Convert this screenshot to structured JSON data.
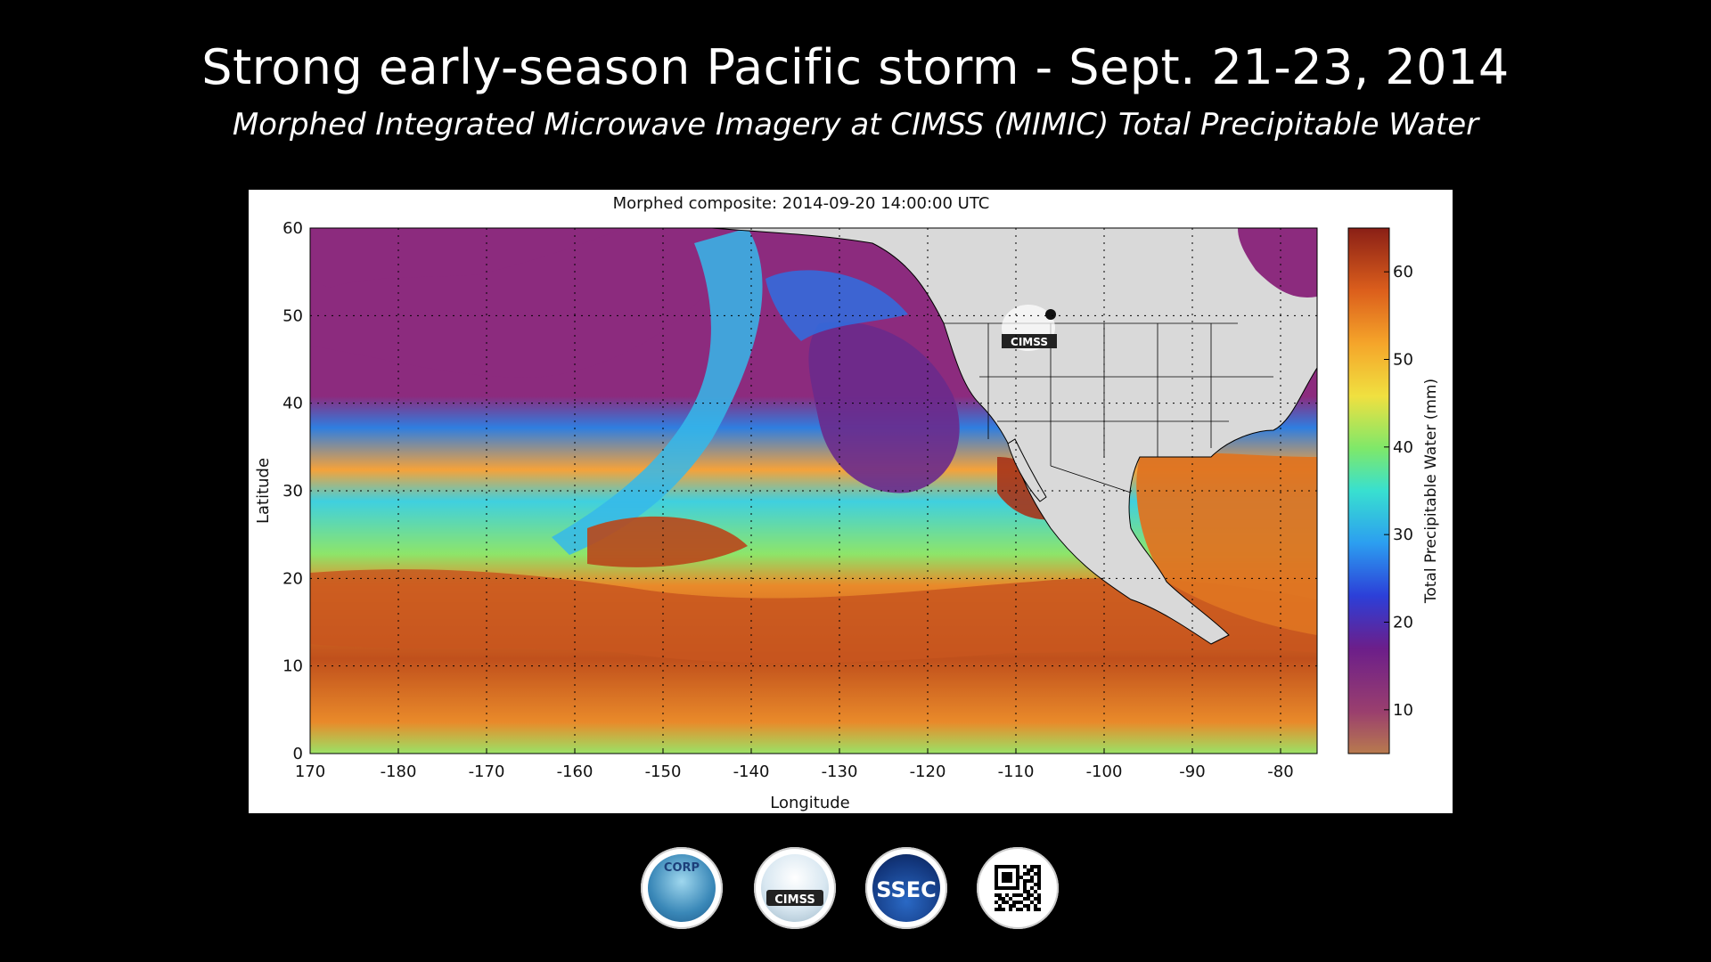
{
  "slide": {
    "title": "Strong early-season Pacific storm - Sept. 21-23, 2014",
    "subtitle": "Morphed Integrated Microwave Imagery at CIMSS (MIMIC) Total Precipitable Water"
  },
  "map": {
    "title": "Morphed composite: 2014-09-20 14:00:00 UTC",
    "x_label": "Longitude",
    "y_label": "Latitude",
    "x_ticks": [
      "170",
      "-180",
      "-170",
      "-160",
      "-150",
      "-140",
      "-130",
      "-120",
      "-110",
      "-100",
      "-90",
      "-80"
    ],
    "y_ticks": [
      "60",
      "50",
      "40",
      "30",
      "20",
      "10",
      "0"
    ],
    "colorbar": {
      "label": "Total Precipitable Water (mm)",
      "ticks": [
        "60",
        "50",
        "40",
        "30",
        "20",
        "10"
      ],
      "range_mm": [
        5,
        65
      ]
    },
    "watermark": "CIMSS"
  },
  "logos": [
    {
      "name": "corp-logo",
      "text": "CORP"
    },
    {
      "name": "cimss-logo",
      "text": "CIMSS"
    },
    {
      "name": "ssec-logo",
      "text": "SSEC"
    },
    {
      "name": "qr-code",
      "text": ""
    }
  ],
  "colors": {
    "land": "#d8d8d8",
    "dry": "#8b2b7d",
    "moist_blue": "#2f7de0",
    "cyan": "#35d6df",
    "green": "#7fe06a",
    "yellow": "#f5d338",
    "orange": "#e98525",
    "dark_orange": "#bd4b1b"
  }
}
